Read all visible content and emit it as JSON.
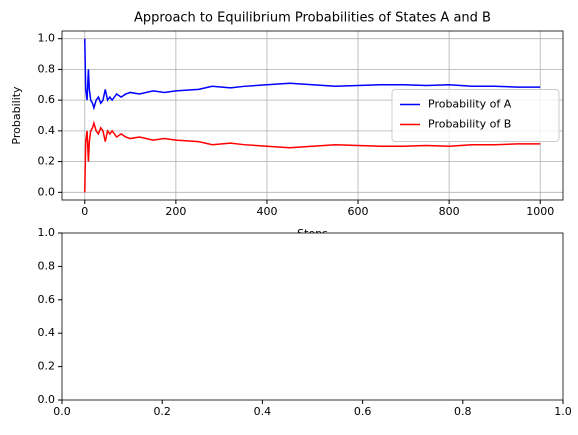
{
  "chart_data": [
    {
      "type": "line",
      "title": "Approach to Equilibrium Probabilities of States A and B",
      "x_label": "Steps",
      "y_label": "Probability",
      "x": [
        0,
        2,
        5,
        8,
        10,
        13,
        17,
        20,
        25,
        30,
        35,
        40,
        45,
        50,
        55,
        60,
        70,
        80,
        90,
        100,
        120,
        150,
        175,
        200,
        250,
        280,
        320,
        350,
        400,
        450,
        500,
        550,
        600,
        650,
        700,
        750,
        800,
        850,
        900,
        950,
        1000
      ],
      "series": [
        {
          "name": "Probability of A",
          "color": "#0000ff",
          "values": [
            1.0,
            0.67,
            0.6,
            0.8,
            0.67,
            0.6,
            0.58,
            0.55,
            0.6,
            0.62,
            0.58,
            0.6,
            0.67,
            0.6,
            0.62,
            0.6,
            0.64,
            0.62,
            0.64,
            0.65,
            0.64,
            0.66,
            0.65,
            0.66,
            0.67,
            0.69,
            0.68,
            0.69,
            0.7,
            0.71,
            0.7,
            0.69,
            0.695,
            0.7,
            0.7,
            0.695,
            0.7,
            0.69,
            0.69,
            0.685,
            0.685
          ]
        },
        {
          "name": "Probability of B",
          "color": "#ff0000",
          "values": [
            0,
            0.33,
            0.4,
            0.2,
            0.33,
            0.4,
            0.42,
            0.45,
            0.4,
            0.38,
            0.42,
            0.4,
            0.33,
            0.4,
            0.38,
            0.4,
            0.36,
            0.38,
            0.36,
            0.35,
            0.36,
            0.34,
            0.35,
            0.34,
            0.33,
            0.31,
            0.32,
            0.31,
            0.3,
            0.29,
            0.3,
            0.31,
            0.305,
            0.3,
            0.3,
            0.305,
            0.3,
            0.31,
            0.31,
            0.315,
            0.315
          ]
        }
      ],
      "xlim": [
        -50,
        1050
      ],
      "xticks": [
        0,
        200,
        400,
        600,
        800,
        1000
      ],
      "ylim": [
        -0.05,
        1.05
      ],
      "yticks": [
        {
          "value": 0,
          "label": "0.0"
        },
        0.2,
        0.4,
        0.6,
        0.8,
        {
          "value": 1,
          "label": "1.0"
        }
      ],
      "grid": true,
      "legend": "center right"
    },
    {
      "type": "line",
      "xlim": [
        0,
        1
      ],
      "xticks": [
        {
          "value": 0,
          "label": "0.0"
        },
        0.2,
        0.4,
        0.6,
        0.8,
        {
          "value": 1,
          "label": "1.0"
        }
      ],
      "ylim": [
        0,
        1
      ],
      "yticks": [
        {
          "value": 0,
          "label": "0.0"
        },
        0.2,
        0.4,
        0.6,
        0.8,
        {
          "value": 1,
          "label": "1.0"
        }
      ],
      "grid": false
    }
  ]
}
